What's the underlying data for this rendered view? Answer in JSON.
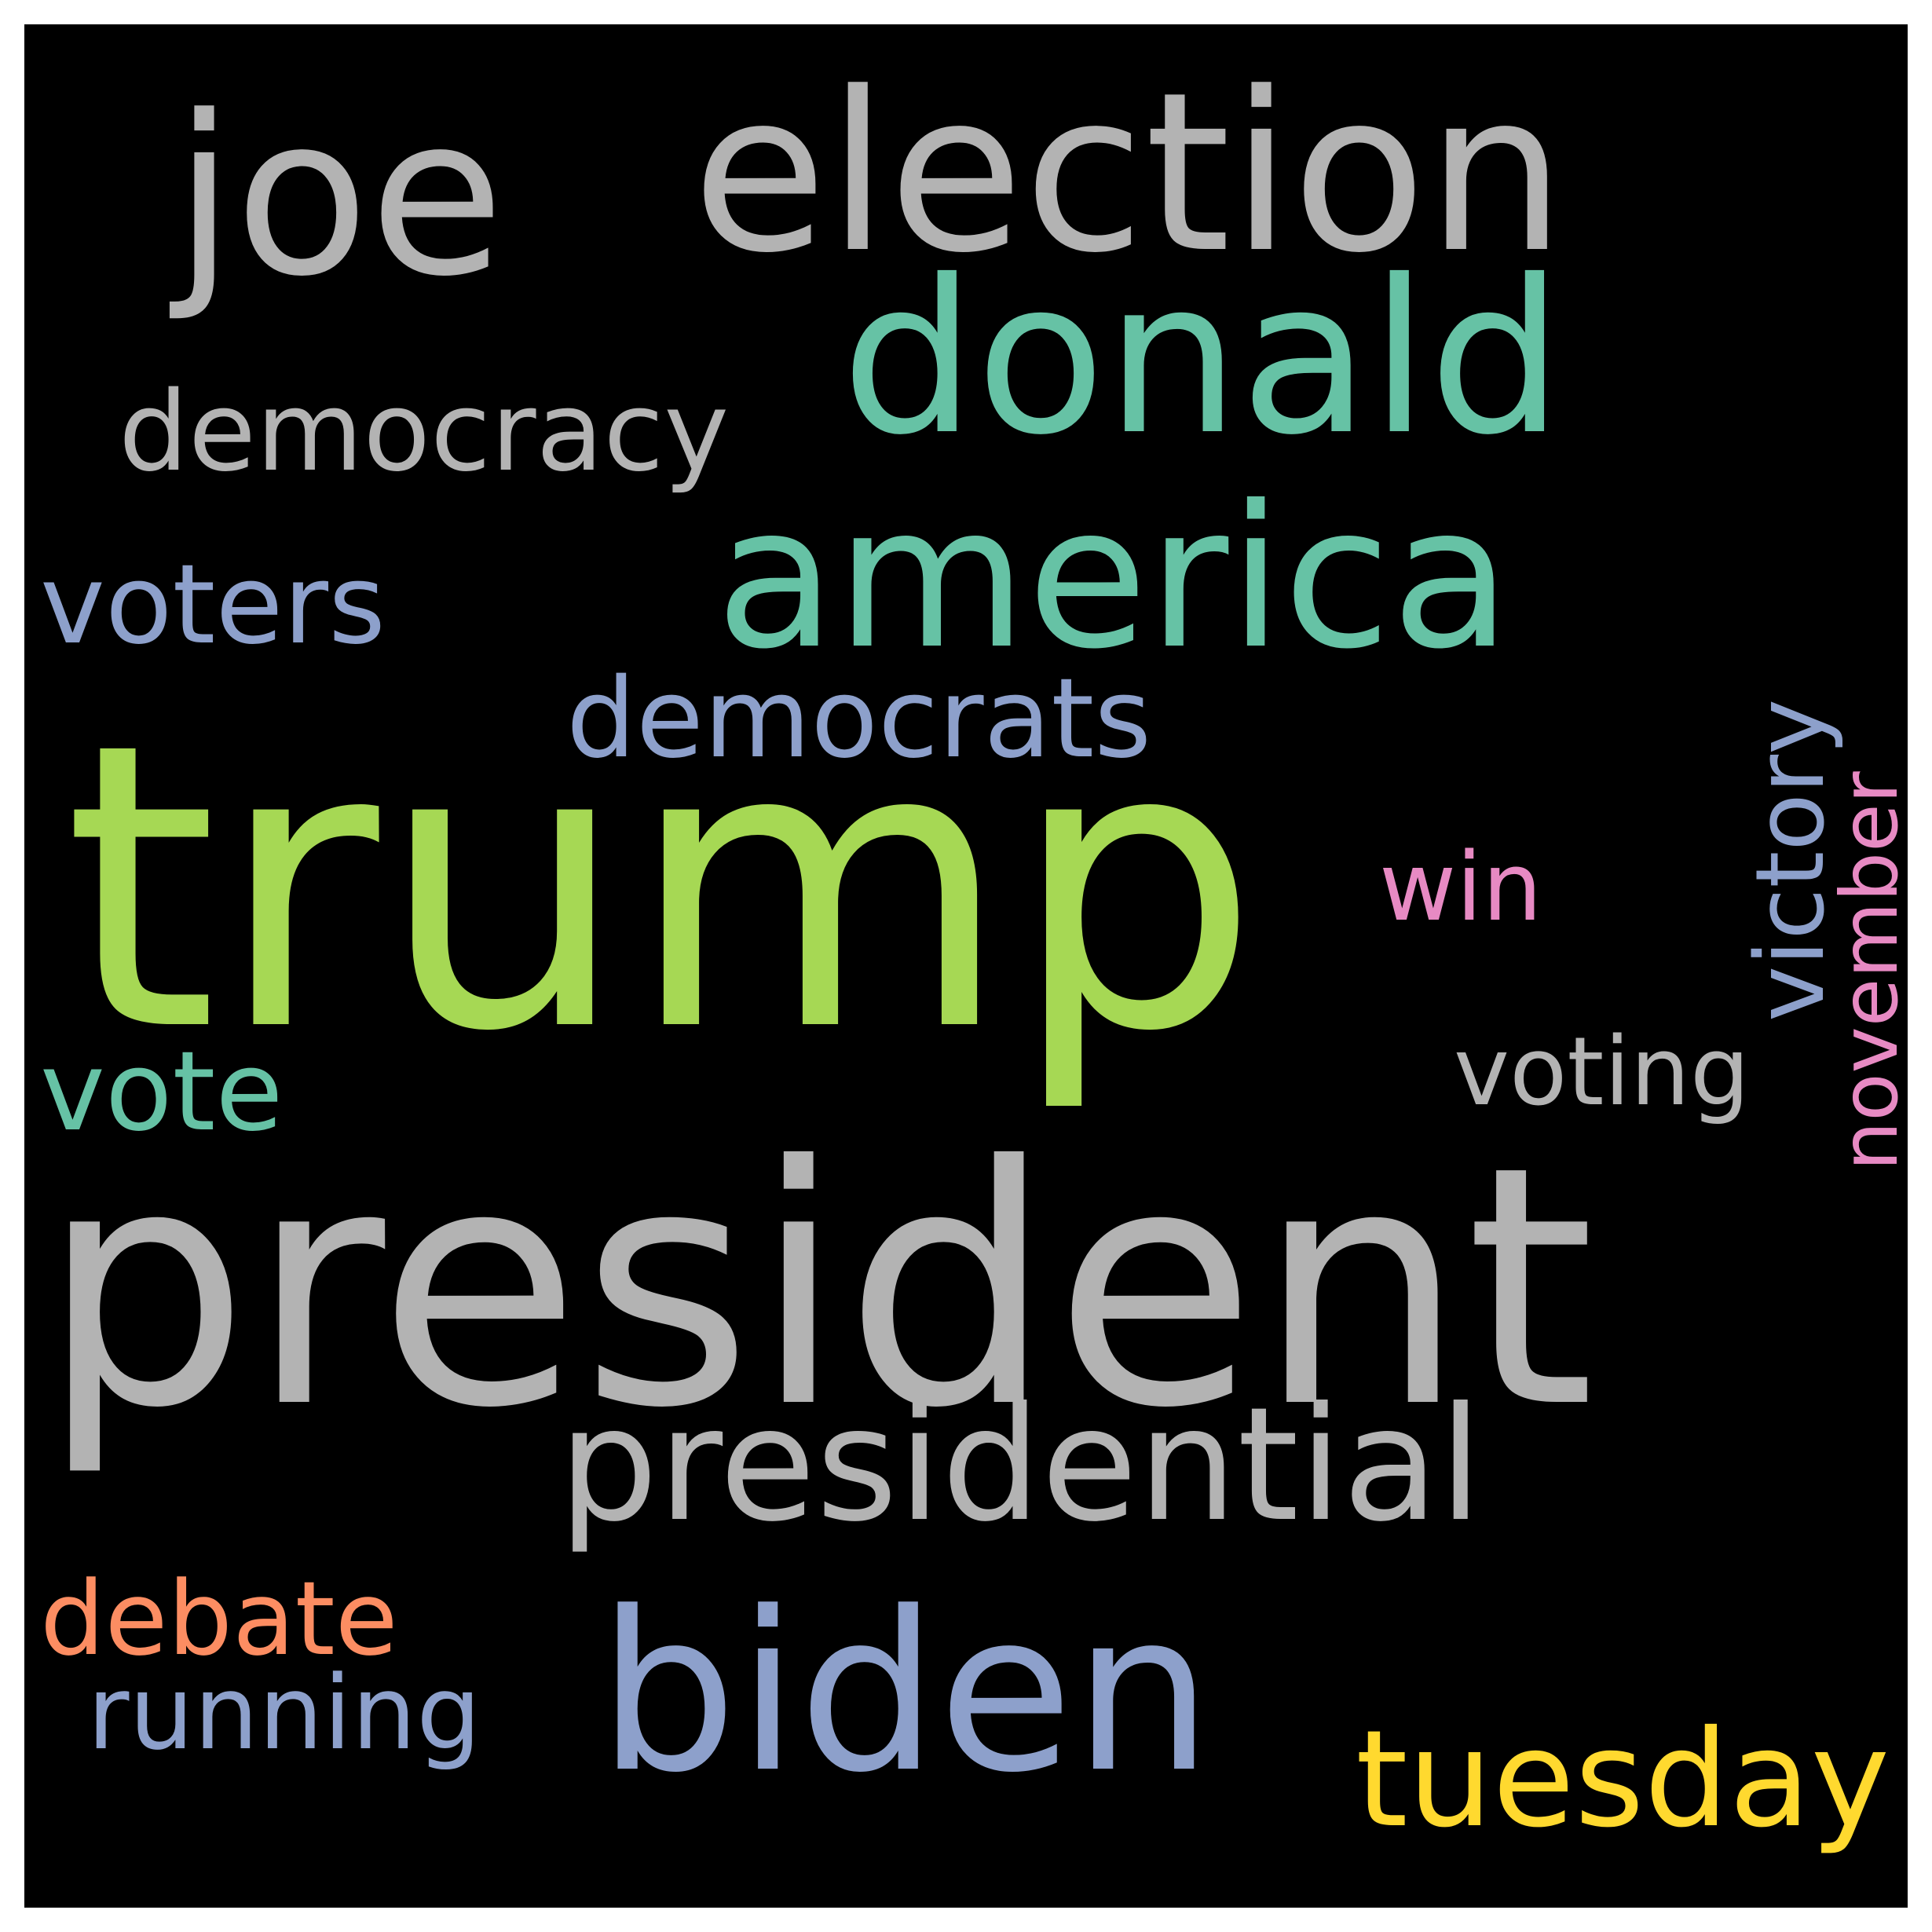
{
  "words": [
    {
      "key": "trump",
      "text": "trump",
      "color": "#a6d854"
    },
    {
      "key": "president",
      "text": "president",
      "color": "#b3b3b3"
    },
    {
      "key": "election",
      "text": "election",
      "color": "#b3b3b3"
    },
    {
      "key": "joe",
      "text": "joe",
      "color": "#b3b3b3"
    },
    {
      "key": "donald",
      "text": "donald",
      "color": "#66c2a5"
    },
    {
      "key": "america",
      "text": "america",
      "color": "#66c2a5"
    },
    {
      "key": "biden",
      "text": "biden",
      "color": "#8da0cb"
    },
    {
      "key": "presidential",
      "text": "presidential",
      "color": "#b3b3b3"
    },
    {
      "key": "democracy",
      "text": "democracy",
      "color": "#b3b3b3"
    },
    {
      "key": "democrats",
      "text": "democrats",
      "color": "#8da0cb"
    },
    {
      "key": "voters",
      "text": "voters",
      "color": "#8da0cb"
    },
    {
      "key": "tuesday",
      "text": "tuesday",
      "color": "#ffd92f"
    },
    {
      "key": "victory",
      "text": "victory",
      "color": "#8da0cb"
    },
    {
      "key": "november",
      "text": "november",
      "color": "#e78ac3"
    },
    {
      "key": "win",
      "text": "win",
      "color": "#e78ac3"
    },
    {
      "key": "voting",
      "text": "voting",
      "color": "#b3b3b3"
    },
    {
      "key": "vote",
      "text": "vote",
      "color": "#66c2a5"
    },
    {
      "key": "debate",
      "text": "debate",
      "color": "#fc8d62"
    },
    {
      "key": "running",
      "text": "running",
      "color": "#8da0cb"
    }
  ]
}
